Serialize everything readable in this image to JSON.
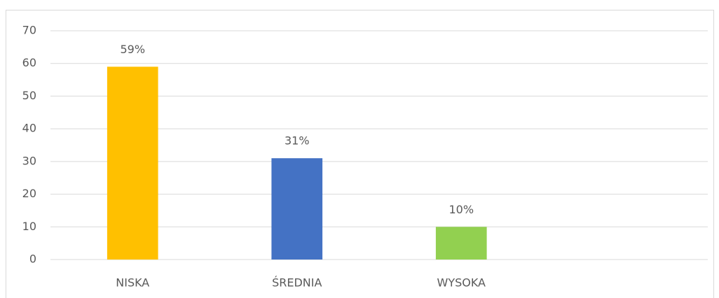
{
  "chart_data": {
    "type": "bar",
    "categories": [
      "NISKA",
      "ŚREDNIA",
      "WYSOKA",
      null
    ],
    "values": [
      59,
      31,
      10,
      null
    ],
    "value_labels": [
      "59%",
      "31%",
      "10%",
      null
    ],
    "colors": [
      "#ffc000",
      "#4472c4",
      "#92d050",
      null
    ],
    "ylim": [
      0,
      70
    ],
    "yticks": [
      0,
      10,
      20,
      30,
      40,
      50,
      60,
      70
    ],
    "grid": true
  }
}
